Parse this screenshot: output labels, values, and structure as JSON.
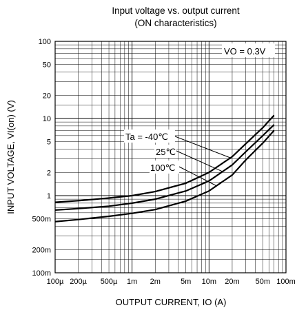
{
  "chart_data": {
    "type": "line",
    "title": "Input voltage vs. output current",
    "subtitle": "(ON characteristics)",
    "xlabel": "OUTPUT CURRENT, IO (A)",
    "ylabel": "INPUT VOLTAGE, VI(on) (V)",
    "x_scale": "log",
    "y_scale": "log",
    "xlim": [
      0.0001,
      0.1
    ],
    "ylim": [
      0.1,
      100
    ],
    "x_ticks": [
      {
        "value": 0.0001,
        "label": "100µ"
      },
      {
        "value": 0.0002,
        "label": "200µ"
      },
      {
        "value": 0.0005,
        "label": "500µ"
      },
      {
        "value": 0.001,
        "label": "1m"
      },
      {
        "value": 0.002,
        "label": "2m"
      },
      {
        "value": 0.005,
        "label": "5m"
      },
      {
        "value": 0.01,
        "label": "10m"
      },
      {
        "value": 0.02,
        "label": "20m"
      },
      {
        "value": 0.05,
        "label": "50m"
      },
      {
        "value": 0.1,
        "label": "100m"
      }
    ],
    "y_ticks": [
      {
        "value": 100,
        "label": "100"
      },
      {
        "value": 50,
        "label": "50"
      },
      {
        "value": 20,
        "label": "20"
      },
      {
        "value": 10,
        "label": "10"
      },
      {
        "value": 5,
        "label": "5"
      },
      {
        "value": 2,
        "label": "2"
      },
      {
        "value": 1,
        "label": "1"
      },
      {
        "value": 0.5,
        "label": "500m"
      },
      {
        "value": 0.2,
        "label": "200m"
      },
      {
        "value": 0.1,
        "label": "100m"
      }
    ],
    "grid": true,
    "annotations": {
      "condition": "VO = 0.3V",
      "ta_label": "Ta = -40℃",
      "ta_mid": "25℃",
      "ta_high": "100℃"
    },
    "series": [
      {
        "name": "Ta = -40℃",
        "x": [
          0.0001,
          0.0002,
          0.0005,
          0.001,
          0.002,
          0.005,
          0.01,
          0.02,
          0.03,
          0.05,
          0.07
        ],
        "y": [
          0.82,
          0.86,
          0.93,
          1.0,
          1.13,
          1.45,
          2.0,
          3.2,
          4.7,
          7.6,
          11
        ]
      },
      {
        "name": "25℃",
        "x": [
          0.0001,
          0.0002,
          0.0005,
          0.001,
          0.002,
          0.005,
          0.01,
          0.02,
          0.03,
          0.05,
          0.07
        ],
        "y": [
          0.65,
          0.68,
          0.73,
          0.8,
          0.9,
          1.15,
          1.55,
          2.5,
          3.7,
          6.0,
          8.3
        ]
      },
      {
        "name": "100℃",
        "x": [
          0.0001,
          0.0002,
          0.0005,
          0.001,
          0.002,
          0.005,
          0.01,
          0.02,
          0.03,
          0.05,
          0.07
        ],
        "y": [
          0.46,
          0.49,
          0.54,
          0.59,
          0.66,
          0.85,
          1.15,
          1.85,
          2.9,
          4.8,
          7.0
        ]
      }
    ]
  }
}
